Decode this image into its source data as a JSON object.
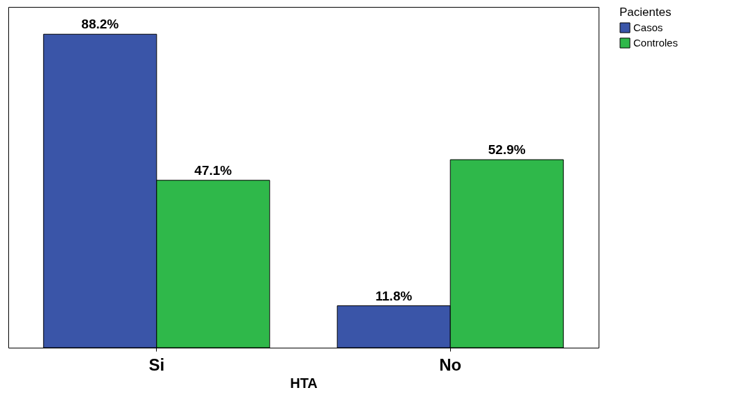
{
  "chart_data": {
    "type": "bar",
    "xlabel": "HTA",
    "legend_title": "Pacientes",
    "legend": "top right",
    "grid": false,
    "categories": [
      "Si",
      "No"
    ],
    "series": [
      {
        "name": "Casos",
        "color": "#3a55a8",
        "values": [
          88.2,
          11.8
        ],
        "value_labels": [
          "88.2%",
          "11.8%"
        ]
      },
      {
        "name": "Controles",
        "color": "#2fb84a",
        "values": [
          47.1,
          52.9
        ],
        "value_labels": [
          "47.1%",
          "52.9%"
        ]
      }
    ]
  }
}
